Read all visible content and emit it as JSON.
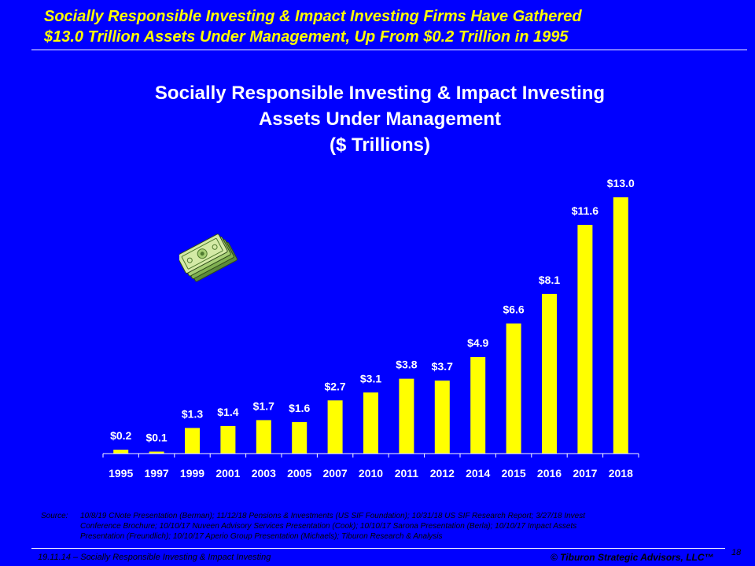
{
  "headline": {
    "line1": "Socially Responsible Investing & Impact Investing Firms Have Gathered",
    "line2": "$13.0 Trillion Assets Under Management, Up From $0.2 Trillion in 1995"
  },
  "chart_title": {
    "line1": "Socially Responsible Investing & Impact Investing",
    "line2": "Assets Under Management",
    "line3": "($ Trillions)"
  },
  "chart_data": {
    "type": "bar",
    "title": "Socially Responsible Investing & Impact Investing Assets Under Management ($ Trillions)",
    "categories": [
      "1995",
      "1997",
      "1999",
      "2001",
      "2003",
      "2005",
      "2007",
      "2010",
      "2011",
      "2012",
      "2014",
      "2015",
      "2016",
      "2017",
      "2018"
    ],
    "values": [
      0.2,
      0.1,
      1.3,
      1.4,
      1.7,
      1.6,
      2.7,
      3.1,
      3.8,
      3.7,
      4.9,
      6.6,
      8.1,
      11.6,
      13.0
    ],
    "value_labels": [
      "$0.2",
      "$0.1",
      "$1.3",
      "$1.4",
      "$1.7",
      "$1.6",
      "$2.7",
      "$3.1",
      "$3.8",
      "$3.7",
      "$4.9",
      "$6.6",
      "$8.1",
      "$11.6",
      "$13.0"
    ],
    "xlabel": "",
    "ylabel": "",
    "ylim": [
      0,
      13.0
    ],
    "grid": false,
    "bar_color": "#FFFF00"
  },
  "source": {
    "label": "Source:",
    "line1": "10/8/19 CNote Presentation (Berman); 11/12/18 Pensions & Investments (US SIF Foundation); 10/31/18 US SIF Research Report; 3/27/18 Invest",
    "line2": "Conference Brochure; 10/10/17 Nuveen Advisory Services Presentation (Cook); 10/10/17 Sarona Presentation (Berla); 10/10/17 Impact Assets",
    "line3": "Presentation (Freundlich); 10/10/17 Aperio Group Presentation (Michaels); Tiburon Research & Analysis"
  },
  "footer": {
    "left": "19.11.14 – Socially Responsible Investing & Impact Investing",
    "right": "© Tiburon Strategic Advisors, LLC™",
    "page": "18"
  },
  "colors": {
    "background": "#0000FF",
    "headline": "#FFFF00",
    "bars": "#FFFF00",
    "text": "#FFFFFF"
  }
}
